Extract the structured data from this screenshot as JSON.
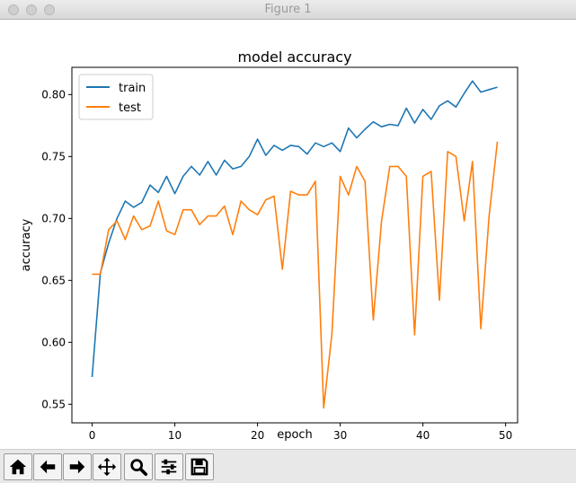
{
  "window": {
    "title": "Figure 1"
  },
  "toolbar": {
    "buttons": [
      {
        "name": "home",
        "icon": "home-icon"
      },
      {
        "name": "back",
        "icon": "arrow-left-icon"
      },
      {
        "name": "forward",
        "icon": "arrow-right-icon"
      },
      {
        "name": "pan",
        "icon": "move-icon"
      },
      {
        "name": "zoom",
        "icon": "magnifier-icon"
      },
      {
        "name": "subplots",
        "icon": "sliders-icon"
      },
      {
        "name": "save",
        "icon": "floppy-disk-icon"
      }
    ]
  },
  "chart_data": {
    "type": "line",
    "title": "model accuracy",
    "xlabel": "epoch",
    "ylabel": "accuracy",
    "xlim": [
      -2.45,
      51.45
    ],
    "ylim": [
      0.535,
      0.822
    ],
    "xticks": [
      0,
      10,
      20,
      30,
      40,
      50
    ],
    "yticks": [
      0.55,
      0.6,
      0.65,
      0.7,
      0.75,
      0.8
    ],
    "grid": false,
    "legend_position": "top-left",
    "x": [
      0,
      1,
      2,
      3,
      4,
      5,
      6,
      7,
      8,
      9,
      10,
      11,
      12,
      13,
      14,
      15,
      16,
      17,
      18,
      19,
      20,
      21,
      22,
      23,
      24,
      25,
      26,
      27,
      28,
      29,
      30,
      31,
      32,
      33,
      34,
      35,
      36,
      37,
      38,
      39,
      40,
      41,
      42,
      43,
      44,
      45,
      46,
      47,
      48,
      49
    ],
    "series": [
      {
        "name": "train",
        "color": "#1f77b4",
        "values": [
          0.572,
          0.656,
          0.68,
          0.7,
          0.714,
          0.709,
          0.713,
          0.727,
          0.721,
          0.734,
          0.72,
          0.734,
          0.742,
          0.735,
          0.746,
          0.735,
          0.747,
          0.74,
          0.742,
          0.75,
          0.764,
          0.751,
          0.759,
          0.755,
          0.759,
          0.758,
          0.752,
          0.761,
          0.758,
          0.761,
          0.754,
          0.773,
          0.765,
          0.772,
          0.778,
          0.774,
          0.776,
          0.775,
          0.789,
          0.777,
          0.788,
          0.78,
          0.791,
          0.795,
          0.79,
          0.801,
          0.811,
          0.802,
          0.804,
          0.806
        ]
      },
      {
        "name": "test",
        "color": "#ff7f0e",
        "values": [
          0.655,
          0.655,
          0.691,
          0.698,
          0.683,
          0.702,
          0.691,
          0.694,
          0.714,
          0.69,
          0.687,
          0.707,
          0.707,
          0.695,
          0.702,
          0.702,
          0.71,
          0.687,
          0.714,
          0.707,
          0.703,
          0.715,
          0.718,
          0.659,
          0.722,
          0.719,
          0.719,
          0.73,
          0.547,
          0.607,
          0.734,
          0.719,
          0.742,
          0.73,
          0.618,
          0.698,
          0.742,
          0.742,
          0.734,
          0.606,
          0.734,
          0.738,
          0.634,
          0.754,
          0.75,
          0.698,
          0.746,
          0.611,
          0.702,
          0.762
        ]
      }
    ]
  }
}
